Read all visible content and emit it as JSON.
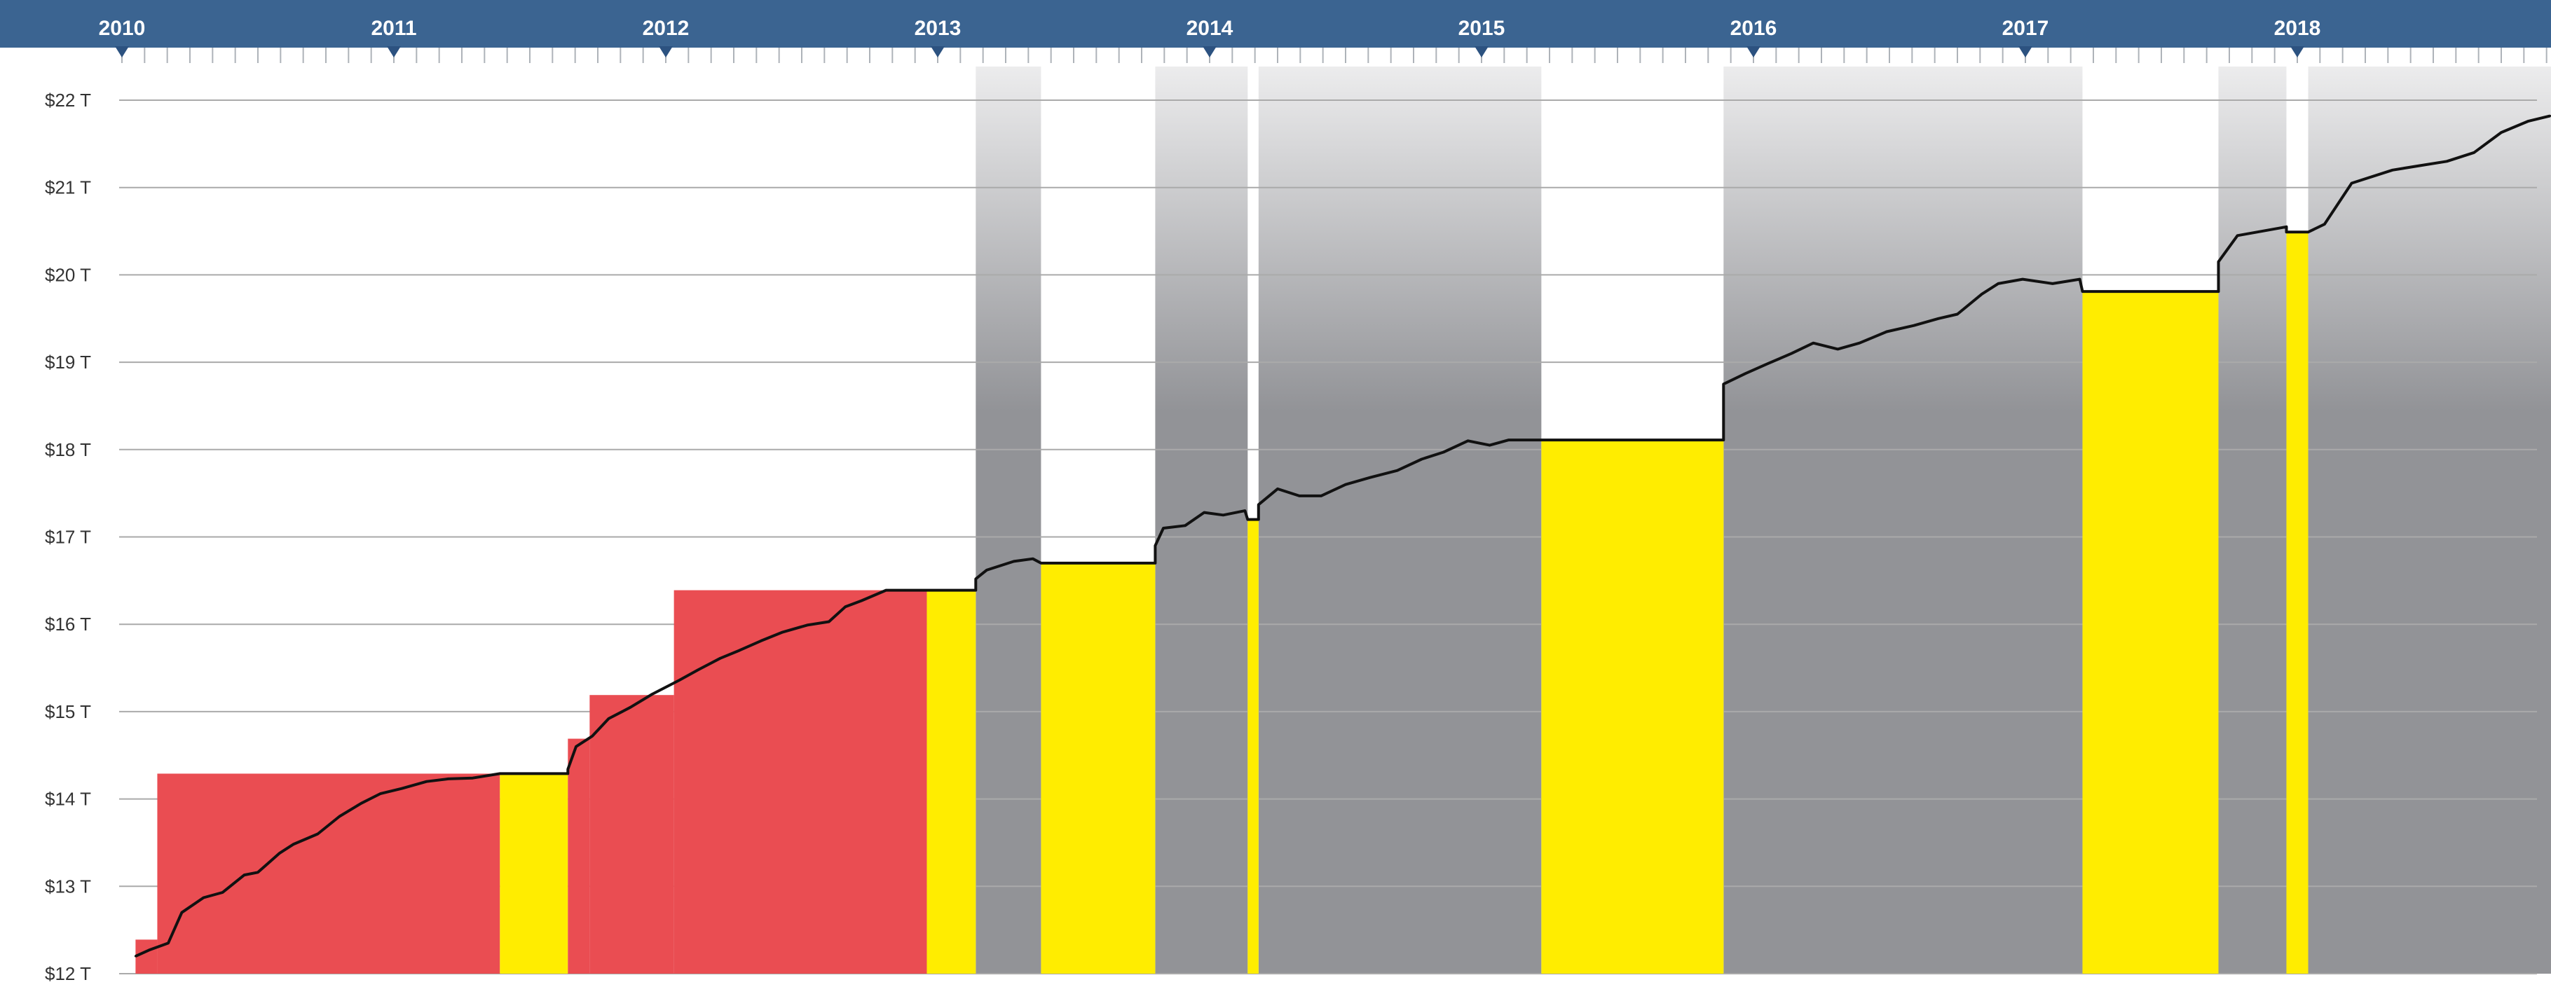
{
  "chart_data": {
    "type": "area",
    "years": [
      "2010",
      "2011",
      "2012",
      "2013",
      "2014",
      "2015",
      "2016",
      "2017",
      "2018"
    ],
    "y_ticks": [
      "$12 T",
      "$13 T",
      "$14 T",
      "$15 T",
      "$16 T",
      "$17 T",
      "$18 T",
      "$19 T",
      "$20 T",
      "$21 T",
      "$22 T"
    ],
    "x_range": [
      2010.0,
      2018.95
    ],
    "y_range": [
      12,
      22.4
    ],
    "grid": true,
    "colors": {
      "header": "#3b6491",
      "marker": "#2c5280",
      "ceiling_red": "#ea4d52",
      "ceiling_yellow": "#ffed00",
      "suspension_gray_top": "#ececed",
      "suspension_gray_bottom": "#929397",
      "debt_line": "#111111",
      "grid": "#aaaaaa"
    },
    "ceiling_limit_steps": [
      {
        "x0": 2010.05,
        "x1": 2010.13,
        "value": 12.39,
        "status": "limit"
      },
      {
        "x0": 2010.13,
        "x1": 2011.39,
        "value": 14.29,
        "status": "limit"
      },
      {
        "x0": 2011.39,
        "x1": 2011.64,
        "value": 14.29,
        "status": "at-limit"
      },
      {
        "x0": 2011.64,
        "x1": 2011.72,
        "value": 14.69,
        "status": "limit"
      },
      {
        "x0": 2011.72,
        "x1": 2012.03,
        "value": 15.19,
        "status": "limit"
      },
      {
        "x0": 2012.03,
        "x1": 2012.96,
        "value": 16.39,
        "status": "limit"
      },
      {
        "x0": 2012.96,
        "x1": 2013.14,
        "value": 16.39,
        "status": "at-limit"
      },
      {
        "x0": 2013.38,
        "x1": 2013.8,
        "value": 16.7,
        "status": "at-limit"
      },
      {
        "x0": 2014.14,
        "x1": 2014.18,
        "value": 17.2,
        "status": "at-limit"
      },
      {
        "x0": 2015.22,
        "x1": 2015.89,
        "value": 18.11,
        "status": "at-limit"
      },
      {
        "x0": 2017.21,
        "x1": 2017.71,
        "value": 19.81,
        "status": "at-limit"
      },
      {
        "x0": 2017.96,
        "x1": 2018.04,
        "value": 20.49,
        "status": "at-limit"
      }
    ],
    "suspension_periods": [
      {
        "x0": 2013.14,
        "x1": 2013.38
      },
      {
        "x0": 2013.8,
        "x1": 2014.14
      },
      {
        "x0": 2014.18,
        "x1": 2015.22
      },
      {
        "x0": 2015.89,
        "x1": 2017.21
      },
      {
        "x0": 2017.71,
        "x1": 2017.96
      },
      {
        "x0": 2018.04,
        "x1": 2018.95
      }
    ],
    "debt_series": {
      "x": [
        2010.05,
        2010.1,
        2010.17,
        2010.22,
        2010.3,
        2010.37,
        2010.45,
        2010.5,
        2010.58,
        2010.63,
        2010.72,
        2010.8,
        2010.88,
        2010.95,
        2011.03,
        2011.12,
        2011.2,
        2011.29,
        2011.39,
        2011.64,
        2011.64,
        2011.67,
        2011.73,
        2011.79,
        2011.87,
        2011.95,
        2012.05,
        2012.12,
        2012.2,
        2012.27,
        2012.35,
        2012.43,
        2012.52,
        2012.6,
        2012.66,
        2012.72,
        2012.81,
        2012.88,
        2012.94,
        2013.14,
        2013.14,
        2013.18,
        2013.28,
        2013.35,
        2013.38,
        2013.8,
        2013.8,
        2013.83,
        2013.91,
        2013.98,
        2014.05,
        2014.13,
        2014.14,
        2014.18,
        2014.18,
        2014.25,
        2014.33,
        2014.41,
        2014.5,
        2014.59,
        2014.69,
        2014.78,
        2014.86,
        2014.95,
        2015.03,
        2015.1,
        2015.22,
        2015.89,
        2015.89,
        2015.97,
        2016.05,
        2016.14,
        2016.22,
        2016.31,
        2016.39,
        2016.49,
        2016.59,
        2016.68,
        2016.75,
        2016.84,
        2016.9,
        2016.99,
        2017.1,
        2017.2,
        2017.21,
        2017.71,
        2017.71,
        2017.78,
        2017.96,
        2017.96,
        2018.04,
        2018.1,
        2018.2,
        2018.35,
        2018.45,
        2018.55,
        2018.65,
        2018.75,
        2018.85,
        2018.93
      ],
      "y": [
        12.2,
        12.27,
        12.35,
        12.7,
        12.87,
        12.93,
        13.13,
        13.16,
        13.38,
        13.48,
        13.6,
        13.8,
        13.95,
        14.06,
        14.12,
        14.2,
        14.23,
        14.24,
        14.29,
        14.29,
        14.34,
        14.6,
        14.72,
        14.92,
        15.05,
        15.2,
        15.36,
        15.48,
        15.61,
        15.7,
        15.81,
        15.91,
        15.99,
        16.03,
        16.2,
        16.27,
        16.39,
        16.39,
        16.39,
        16.39,
        16.52,
        16.62,
        16.72,
        16.75,
        16.7,
        16.7,
        16.9,
        17.1,
        17.13,
        17.28,
        17.25,
        17.3,
        17.2,
        17.2,
        17.37,
        17.55,
        17.47,
        17.47,
        17.6,
        17.68,
        17.76,
        17.89,
        17.97,
        18.1,
        18.05,
        18.11,
        18.11,
        18.11,
        18.75,
        18.87,
        18.98,
        19.1,
        19.22,
        19.15,
        19.22,
        19.35,
        19.42,
        19.5,
        19.55,
        19.78,
        19.9,
        19.95,
        19.9,
        19.95,
        19.81,
        19.81,
        20.15,
        20.45,
        20.55,
        20.49,
        20.49,
        20.58,
        21.05,
        21.2,
        21.25,
        21.3,
        21.4,
        21.63,
        21.76,
        21.82
      ]
    }
  }
}
